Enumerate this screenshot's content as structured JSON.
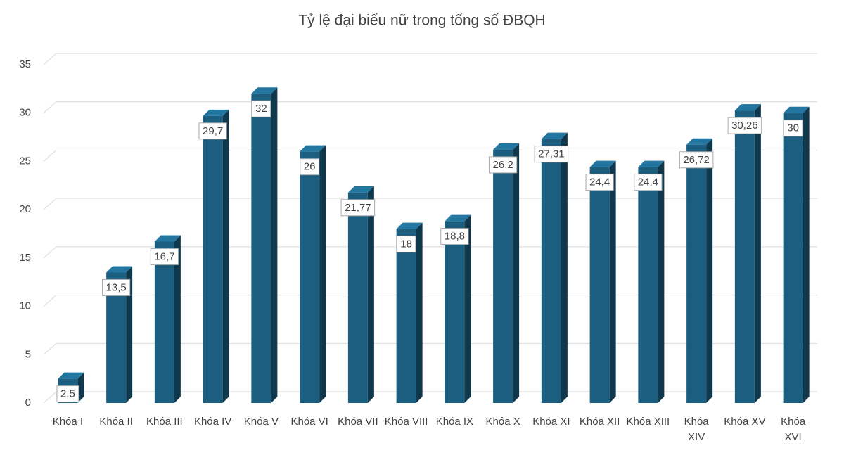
{
  "chart_data": {
    "type": "bar",
    "title": "Tỷ lệ đại biểu nữ trong tổng số ĐBQH",
    "categories": [
      "Khóa I",
      "Khóa II",
      "Khóa III",
      "Khóa IV",
      "Khóa V",
      "Khóa VI",
      "Khóa VII",
      "Khóa VIII",
      "Khóa IX",
      "Khóa X",
      "Khóa XI",
      "Khóa XII",
      "Khóa XIII",
      "Khóa XIV",
      "Khóa XV",
      "Khóa XVI"
    ],
    "values": [
      2.5,
      13.5,
      16.7,
      29.7,
      32,
      26,
      21.77,
      18,
      18.8,
      26.2,
      27.31,
      24.4,
      24.4,
      26.72,
      30.26,
      30
    ],
    "value_labels": [
      "2,5",
      "13,5",
      "16,7",
      "29,7",
      "32",
      "26",
      "21,77",
      "18",
      "18,8",
      "26,2",
      "27,31",
      "24,4",
      "24,4",
      "26,72",
      "30,26",
      "30"
    ],
    "color": "#1b5e80",
    "ylim": [
      0,
      35
    ],
    "yticks": [
      0,
      5,
      10,
      15,
      20,
      25,
      30,
      35
    ],
    "grid": true
  }
}
